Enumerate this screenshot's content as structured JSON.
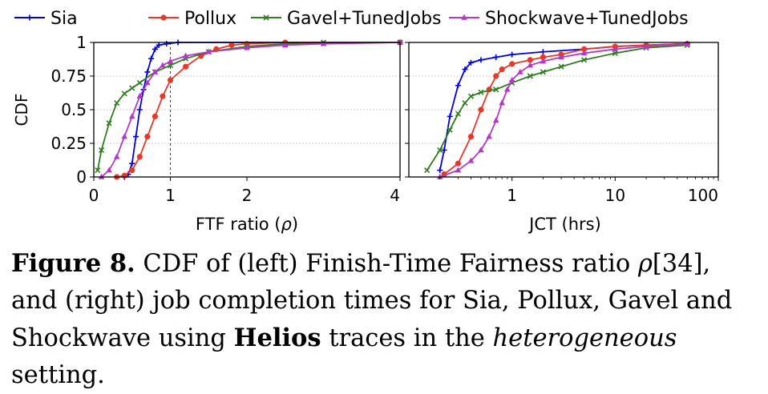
{
  "legend": [
    {
      "label": "Sia",
      "color": "#0000dd",
      "marker": "plus"
    },
    {
      "label": "Pollux",
      "color": "#e8382a",
      "marker": "circle"
    },
    {
      "label": "Gavel+TunedJobs",
      "color": "#2f7d1f",
      "marker": "x"
    },
    {
      "label": "Shockwave+TunedJobs",
      "color": "#b438c8",
      "marker": "triangle"
    }
  ],
  "chart_data": [
    {
      "type": "line",
      "xlabel_prefix": "FTF ratio (",
      "xlabel_symbol": "ρ",
      "xlabel_suffix": ")",
      "ylabel": "CDF",
      "xlim": [
        0,
        4
      ],
      "ylim": [
        0,
        1
      ],
      "xticks": [
        "0",
        "1",
        "2",
        "4"
      ],
      "yticks": [
        "0",
        "0.25",
        "0.5",
        "0.75",
        "1"
      ],
      "reference_line_x": 1,
      "series": [
        {
          "name": "Sia",
          "points": [
            [
              0.4,
              0.0
            ],
            [
              0.45,
              0.02
            ],
            [
              0.5,
              0.1
            ],
            [
              0.55,
              0.3
            ],
            [
              0.6,
              0.5
            ],
            [
              0.65,
              0.65
            ],
            [
              0.7,
              0.78
            ],
            [
              0.75,
              0.88
            ],
            [
              0.8,
              0.95
            ],
            [
              0.85,
              0.98
            ],
            [
              0.95,
              0.99
            ],
            [
              1.1,
              1.0
            ],
            [
              4.0,
              1.0
            ]
          ]
        },
        {
          "name": "Pollux",
          "points": [
            [
              0.3,
              0.0
            ],
            [
              0.4,
              0.01
            ],
            [
              0.5,
              0.05
            ],
            [
              0.6,
              0.15
            ],
            [
              0.7,
              0.3
            ],
            [
              0.8,
              0.45
            ],
            [
              0.9,
              0.6
            ],
            [
              1.0,
              0.72
            ],
            [
              1.2,
              0.82
            ],
            [
              1.4,
              0.9
            ],
            [
              1.6,
              0.95
            ],
            [
              1.8,
              0.98
            ],
            [
              2.0,
              0.99
            ],
            [
              2.5,
              1.0
            ],
            [
              4.0,
              1.0
            ]
          ]
        },
        {
          "name": "Gavel+TunedJobs",
          "points": [
            [
              0.05,
              0.05
            ],
            [
              0.1,
              0.2
            ],
            [
              0.2,
              0.4
            ],
            [
              0.3,
              0.55
            ],
            [
              0.4,
              0.62
            ],
            [
              0.5,
              0.66
            ],
            [
              0.6,
              0.7
            ],
            [
              0.8,
              0.78
            ],
            [
              1.0,
              0.83
            ],
            [
              1.2,
              0.88
            ],
            [
              1.5,
              0.93
            ],
            [
              2.0,
              0.97
            ],
            [
              2.5,
              0.99
            ],
            [
              3.0,
              1.0
            ],
            [
              4.0,
              1.0
            ]
          ]
        },
        {
          "name": "Shockwave+TunedJobs",
          "points": [
            [
              0.1,
              0.0
            ],
            [
              0.2,
              0.05
            ],
            [
              0.3,
              0.15
            ],
            [
              0.4,
              0.3
            ],
            [
              0.5,
              0.45
            ],
            [
              0.6,
              0.6
            ],
            [
              0.7,
              0.7
            ],
            [
              0.8,
              0.78
            ],
            [
              0.9,
              0.83
            ],
            [
              1.0,
              0.86
            ],
            [
              1.2,
              0.9
            ],
            [
              1.5,
              0.93
            ],
            [
              2.0,
              0.96
            ],
            [
              2.5,
              0.98
            ],
            [
              3.0,
              0.99
            ],
            [
              4.0,
              1.0
            ]
          ]
        }
      ]
    },
    {
      "type": "line",
      "xlabel": "JCT (hrs)",
      "xscale": "log",
      "xlim": [
        0.1,
        100
      ],
      "ylim": [
        0,
        1
      ],
      "xticks": [
        "1",
        "10",
        "100"
      ],
      "yticks": [
        "0",
        "0.25",
        "0.5",
        "0.75",
        "1"
      ],
      "series": [
        {
          "name": "Sia",
          "points": [
            [
              0.2,
              0.05
            ],
            [
              0.22,
              0.2
            ],
            [
              0.25,
              0.45
            ],
            [
              0.3,
              0.68
            ],
            [
              0.35,
              0.8
            ],
            [
              0.4,
              0.85
            ],
            [
              0.5,
              0.87
            ],
            [
              0.7,
              0.89
            ],
            [
              1.0,
              0.91
            ],
            [
              2.0,
              0.93
            ],
            [
              5.0,
              0.95
            ],
            [
              10.0,
              0.97
            ],
            [
              20.0,
              0.98
            ],
            [
              50.0,
              0.99
            ]
          ]
        },
        {
          "name": "Pollux",
          "points": [
            [
              0.22,
              0.02
            ],
            [
              0.3,
              0.1
            ],
            [
              0.4,
              0.3
            ],
            [
              0.5,
              0.5
            ],
            [
              0.6,
              0.65
            ],
            [
              0.7,
              0.75
            ],
            [
              0.8,
              0.8
            ],
            [
              1.0,
              0.84
            ],
            [
              1.5,
              0.87
            ],
            [
              2.0,
              0.89
            ],
            [
              3.0,
              0.91
            ],
            [
              5.0,
              0.95
            ],
            [
              10.0,
              0.97
            ],
            [
              20.0,
              0.98
            ],
            [
              50.0,
              0.99
            ]
          ]
        },
        {
          "name": "Gavel+TunedJobs",
          "points": [
            [
              0.15,
              0.05
            ],
            [
              0.2,
              0.2
            ],
            [
              0.25,
              0.35
            ],
            [
              0.3,
              0.47
            ],
            [
              0.35,
              0.55
            ],
            [
              0.4,
              0.6
            ],
            [
              0.5,
              0.63
            ],
            [
              0.7,
              0.65
            ],
            [
              1.0,
              0.7
            ],
            [
              1.5,
              0.75
            ],
            [
              2.0,
              0.78
            ],
            [
              3.0,
              0.82
            ],
            [
              5.0,
              0.87
            ],
            [
              10.0,
              0.92
            ],
            [
              20.0,
              0.96
            ],
            [
              50.0,
              0.98
            ]
          ]
        },
        {
          "name": "Shockwave+TunedJobs",
          "points": [
            [
              0.2,
              0.0
            ],
            [
              0.3,
              0.05
            ],
            [
              0.4,
              0.12
            ],
            [
              0.5,
              0.2
            ],
            [
              0.6,
              0.3
            ],
            [
              0.7,
              0.42
            ],
            [
              0.8,
              0.55
            ],
            [
              0.9,
              0.65
            ],
            [
              1.0,
              0.72
            ],
            [
              1.2,
              0.78
            ],
            [
              1.5,
              0.83
            ],
            [
              2.0,
              0.86
            ],
            [
              3.0,
              0.89
            ],
            [
              5.0,
              0.92
            ],
            [
              10.0,
              0.95
            ],
            [
              20.0,
              0.97
            ],
            [
              50.0,
              0.99
            ]
          ]
        }
      ]
    }
  ],
  "caption": {
    "figure_label": "Figure 8.",
    "part1": " CDF of (left) Finish-Time Fairness ratio ",
    "rho": "ρ",
    "part2": "[34], and (right) job completion times for Sia, Pollux, Gavel and Shockwave using ",
    "bold_word": "Helios",
    "part3": " traces in the ",
    "italic_word": "heterogeneous",
    "part4": " setting."
  }
}
